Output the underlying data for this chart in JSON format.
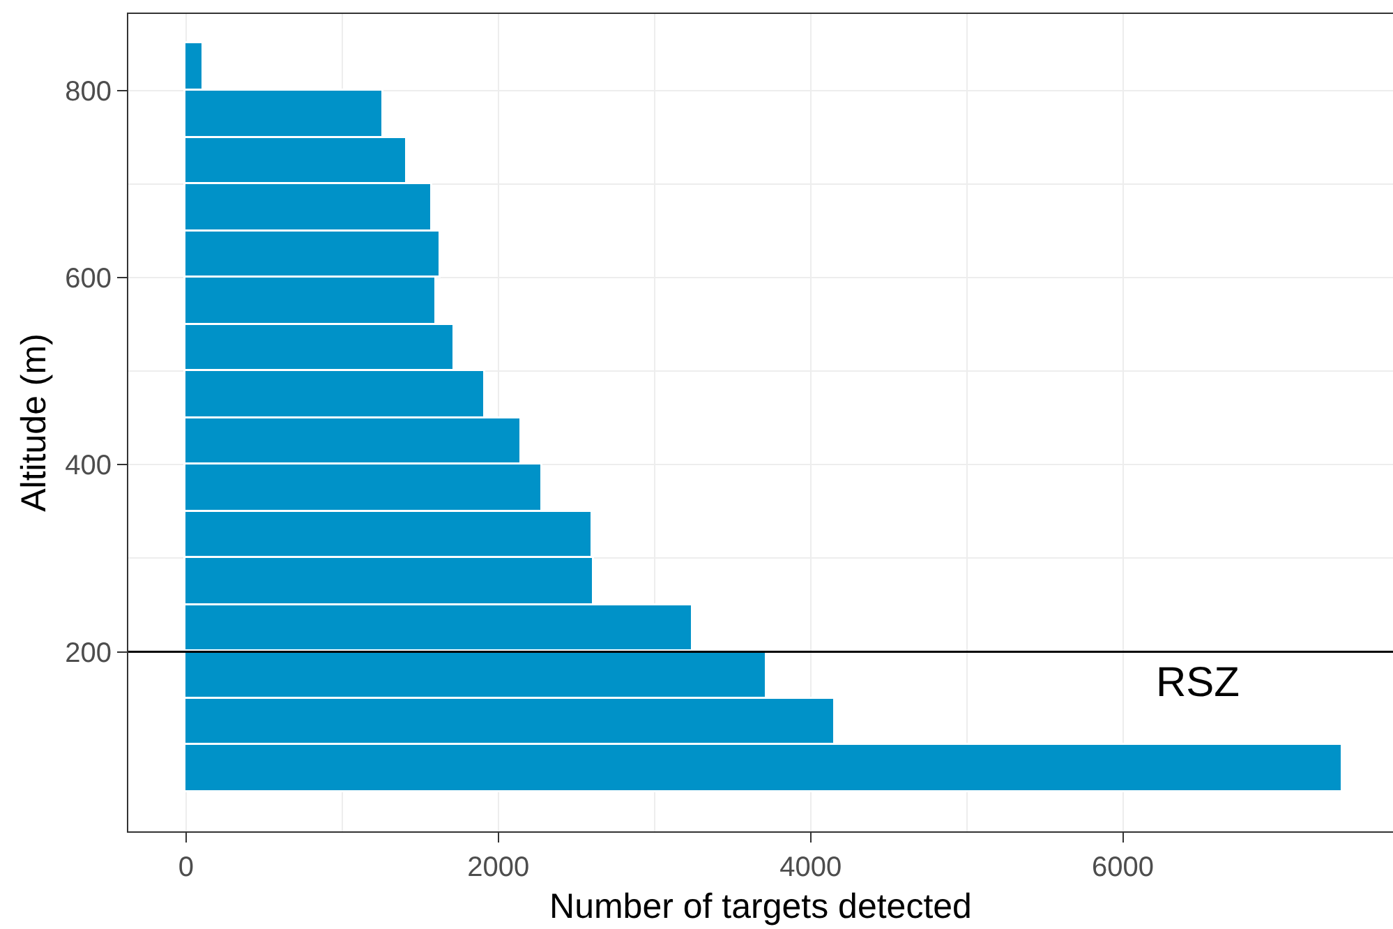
{
  "chart_data": {
    "type": "histogram",
    "orientation": "horizontal",
    "xlabel": "Number of targets detected",
    "ylabel": "Altitude (m)",
    "bins": [
      50,
      100,
      150,
      200,
      250,
      300,
      350,
      400,
      450,
      500,
      550,
      600,
      650,
      700,
      750,
      800,
      850
    ],
    "values": [
      7410,
      4160,
      3720,
      3250,
      2610,
      2600,
      2280,
      2150,
      1920,
      1720,
      1600,
      1630,
      1580,
      1420,
      1260,
      110
    ],
    "color": "#0092c8",
    "xlim": [
      -370,
      7730
    ],
    "xticks": [
      0,
      2000,
      4000,
      6000
    ],
    "ylim": [
      8,
      882
    ],
    "yticks": [
      200,
      400,
      600,
      800
    ],
    "grid": true,
    "ref_lines": [
      {
        "axis": "y",
        "value": 200,
        "label": "RSZ",
        "color": "#000000"
      }
    ]
  }
}
